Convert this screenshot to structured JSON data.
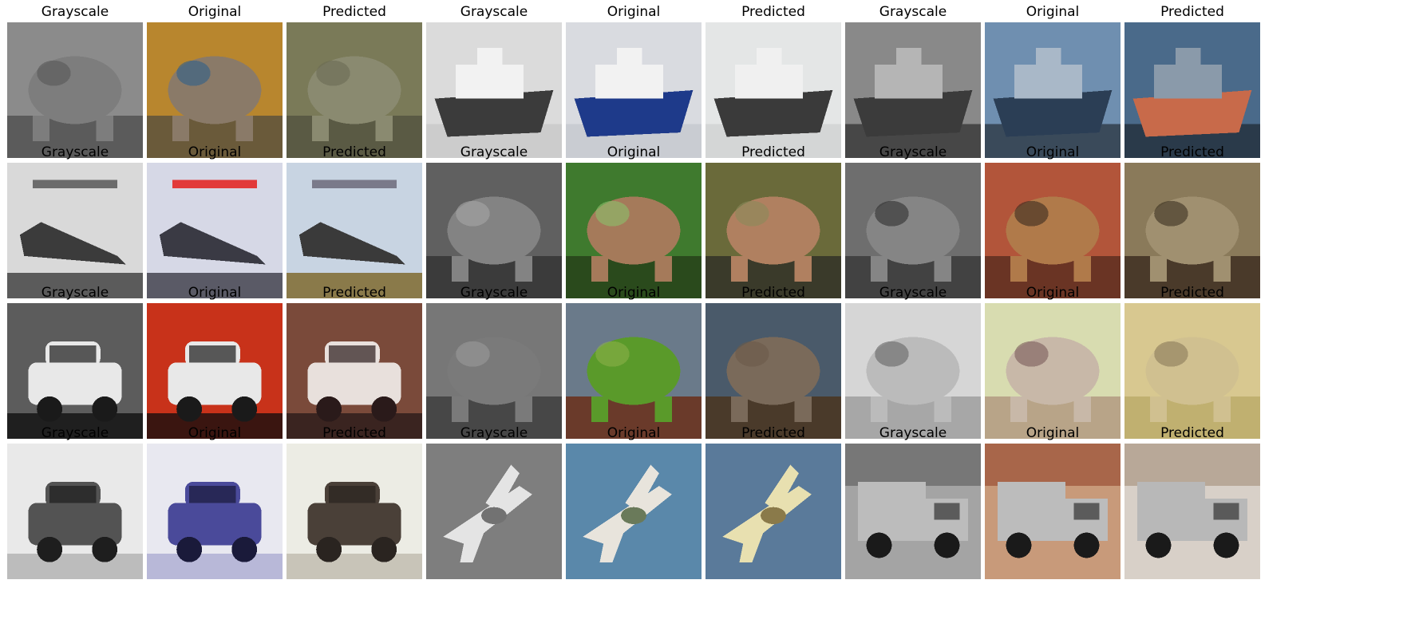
{
  "figure": {
    "rows": [
      {
        "panels": [
          {
            "label": "Grayscale",
            "subject": "cat",
            "mode": "gray"
          },
          {
            "label": "Original",
            "subject": "cat",
            "mode": "original"
          },
          {
            "label": "Predicted",
            "subject": "cat",
            "mode": "predicted"
          },
          {
            "label": "Grayscale",
            "subject": "ship",
            "mode": "gray"
          },
          {
            "label": "Original",
            "subject": "ship",
            "mode": "original"
          },
          {
            "label": "Predicted",
            "subject": "ship",
            "mode": "predicted"
          },
          {
            "label": "Grayscale",
            "subject": "boat",
            "mode": "gray"
          },
          {
            "label": "Original",
            "subject": "boat",
            "mode": "original"
          },
          {
            "label": "Predicted",
            "subject": "boat",
            "mode": "predicted"
          }
        ]
      },
      {
        "panels": [
          {
            "label": "Grayscale",
            "subject": "plane-sign",
            "mode": "gray"
          },
          {
            "label": "Original",
            "subject": "plane-sign",
            "mode": "original"
          },
          {
            "label": "Predicted",
            "subject": "plane-sign",
            "mode": "predicted"
          },
          {
            "label": "Grayscale",
            "subject": "frog-grass",
            "mode": "gray"
          },
          {
            "label": "Original",
            "subject": "frog-grass",
            "mode": "original"
          },
          {
            "label": "Predicted",
            "subject": "frog-grass",
            "mode": "predicted"
          },
          {
            "label": "Grayscale",
            "subject": "frog-red",
            "mode": "gray"
          },
          {
            "label": "Original",
            "subject": "frog-red",
            "mode": "original"
          },
          {
            "label": "Predicted",
            "subject": "frog-red",
            "mode": "predicted"
          }
        ]
      },
      {
        "panels": [
          {
            "label": "Grayscale",
            "subject": "car-red",
            "mode": "gray"
          },
          {
            "label": "Original",
            "subject": "car-red",
            "mode": "original"
          },
          {
            "label": "Predicted",
            "subject": "car-red",
            "mode": "predicted"
          },
          {
            "label": "Grayscale",
            "subject": "frog-green",
            "mode": "gray"
          },
          {
            "label": "Original",
            "subject": "frog-green",
            "mode": "original"
          },
          {
            "label": "Predicted",
            "subject": "frog-green",
            "mode": "predicted"
          },
          {
            "label": "Grayscale",
            "subject": "cat-light",
            "mode": "gray"
          },
          {
            "label": "Original",
            "subject": "cat-light",
            "mode": "original"
          },
          {
            "label": "Predicted",
            "subject": "cat-light",
            "mode": "predicted"
          }
        ]
      },
      {
        "panels": [
          {
            "label": "Grayscale",
            "subject": "suv",
            "mode": "gray"
          },
          {
            "label": "Original",
            "subject": "suv",
            "mode": "original"
          },
          {
            "label": "Predicted",
            "subject": "suv",
            "mode": "predicted"
          },
          {
            "label": "Grayscale",
            "subject": "jet",
            "mode": "gray"
          },
          {
            "label": "Original",
            "subject": "jet",
            "mode": "original"
          },
          {
            "label": "Predicted",
            "subject": "jet",
            "mode": "predicted"
          },
          {
            "label": "Grayscale",
            "subject": "truck",
            "mode": "gray"
          },
          {
            "label": "Original",
            "subject": "truck",
            "mode": "original"
          },
          {
            "label": "Predicted",
            "subject": "truck",
            "mode": "predicted"
          }
        ]
      }
    ]
  }
}
